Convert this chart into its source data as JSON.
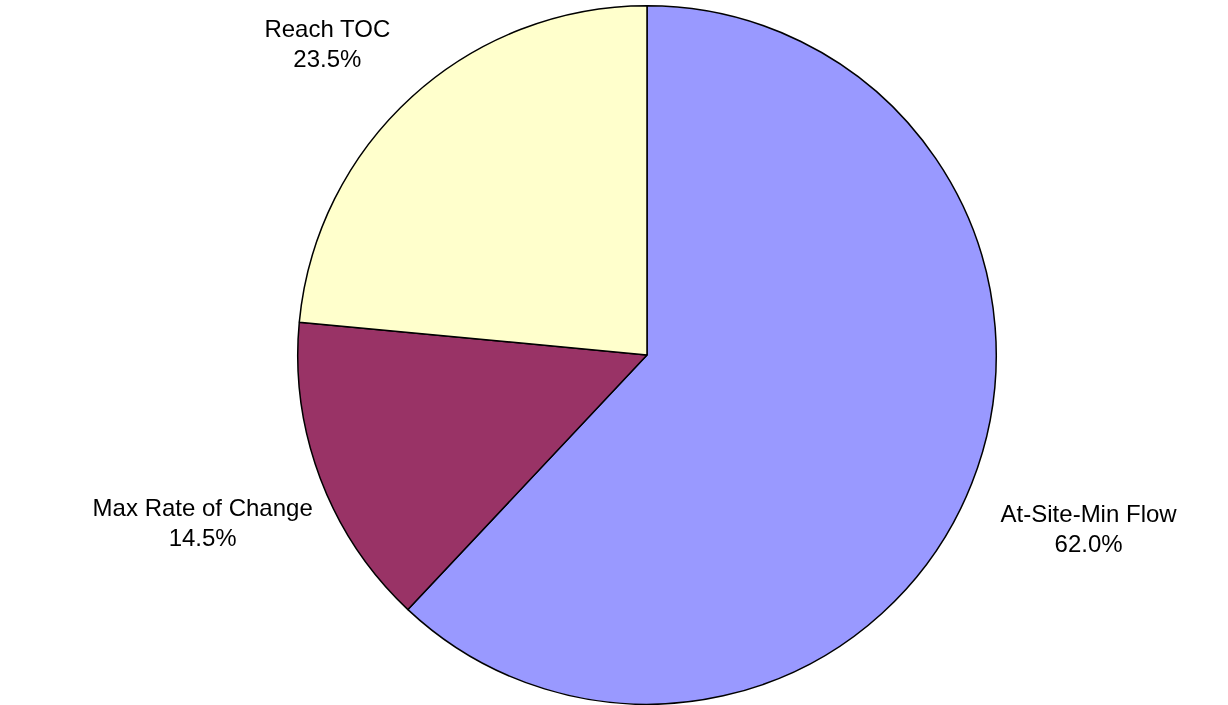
{
  "chart_data": {
    "type": "pie",
    "categories": [
      "At-Site-Min Flow",
      "Max Rate of Change",
      "Reach TOC"
    ],
    "values": [
      62.0,
      14.5,
      23.5
    ],
    "colors": [
      "#9999ff",
      "#993366",
      "#ffffcc"
    ],
    "value_labels": [
      "62.0%",
      "14.5%",
      "23.5%"
    ],
    "legend": false
  }
}
